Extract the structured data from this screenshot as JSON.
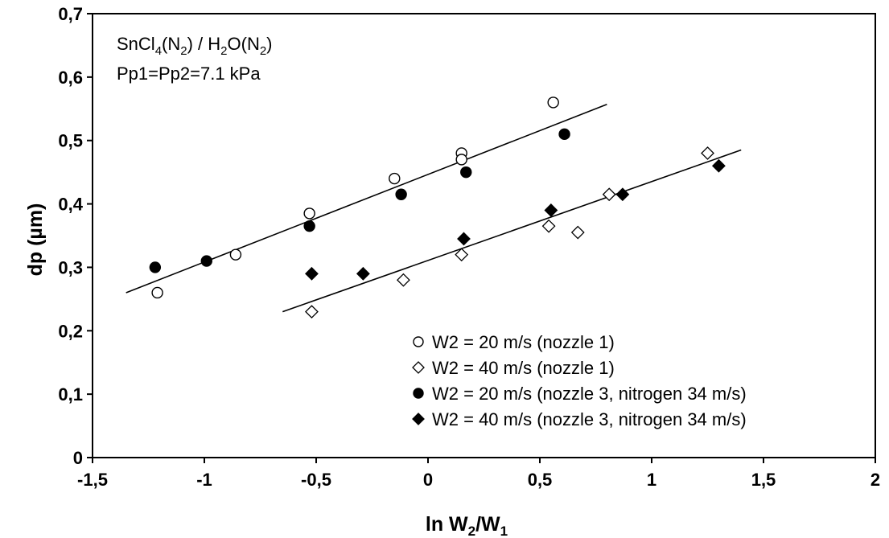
{
  "chart_data": {
    "type": "scatter",
    "xlabel": {
      "main": "ln W",
      "sub1": "2",
      "slash": "/W",
      "sub2": "1"
    },
    "ylabel": "dp (µm)",
    "xlim": [
      -1.5,
      2
    ],
    "ylim": [
      0,
      0.7
    ],
    "x_ticks": [
      -1.5,
      -1,
      -0.5,
      0,
      0.5,
      1,
      1.5,
      2
    ],
    "x_tick_labels": [
      "-1,5",
      "-1",
      "-0,5",
      "0",
      "0,5",
      "1",
      "1,5",
      "2"
    ],
    "y_ticks": [
      0,
      0.1,
      0.2,
      0.3,
      0.4,
      0.5,
      0.6,
      0.7
    ],
    "y_tick_labels": [
      "0",
      "0,1",
      "0,2",
      "0,3",
      "0,4",
      "0,5",
      "0,6",
      "0,7"
    ],
    "grid": false,
    "legend_position": "bottom-right",
    "annotations": {
      "line1": {
        "a": "SnCl",
        "a_sub": "4",
        "b": "(N",
        "b_sub": "2",
        "c": ") / H",
        "c_sub": "2",
        "d": "O(N",
        "d_sub": "2",
        "e": ")"
      },
      "line2": "Pp1=Pp2=7.1 kPa"
    },
    "series": [
      {
        "name": "W2 = 20 m/s (nozzle 1)",
        "marker": "circle-open",
        "points": [
          [
            -1.21,
            0.26
          ],
          [
            -0.86,
            0.32
          ],
          [
            -0.53,
            0.385
          ],
          [
            -0.15,
            0.44
          ],
          [
            0.15,
            0.48
          ],
          [
            0.15,
            0.47
          ],
          [
            0.56,
            0.56
          ]
        ]
      },
      {
        "name": "W2 = 40 m/s (nozzle 1)",
        "marker": "diamond-open",
        "points": [
          [
            -0.52,
            0.23
          ],
          [
            -0.11,
            0.28
          ],
          [
            0.15,
            0.32
          ],
          [
            0.54,
            0.365
          ],
          [
            0.67,
            0.355
          ],
          [
            0.81,
            0.415
          ],
          [
            1.25,
            0.48
          ]
        ]
      },
      {
        "name": "W2 = 20 m/s (nozzle 3, nitrogen 34 m/s)",
        "marker": "circle-filled",
        "points": [
          [
            -1.22,
            0.3
          ],
          [
            -0.99,
            0.31
          ],
          [
            -0.53,
            0.365
          ],
          [
            -0.12,
            0.415
          ],
          [
            0.17,
            0.45
          ],
          [
            0.61,
            0.51
          ]
        ]
      },
      {
        "name": "W2 = 40 m/s (nozzle 3, nitrogen 34 m/s)",
        "marker": "diamond-filled",
        "points": [
          [
            -0.52,
            0.29
          ],
          [
            -0.29,
            0.29
          ],
          [
            0.16,
            0.345
          ],
          [
            0.55,
            0.39
          ],
          [
            0.87,
            0.415
          ],
          [
            1.3,
            0.46
          ]
        ]
      }
    ],
    "trend_lines": [
      {
        "from": [
          -1.35,
          0.26
        ],
        "to": [
          0.8,
          0.557
        ]
      },
      {
        "from": [
          -0.65,
          0.23
        ],
        "to": [
          1.4,
          0.485
        ]
      }
    ]
  }
}
